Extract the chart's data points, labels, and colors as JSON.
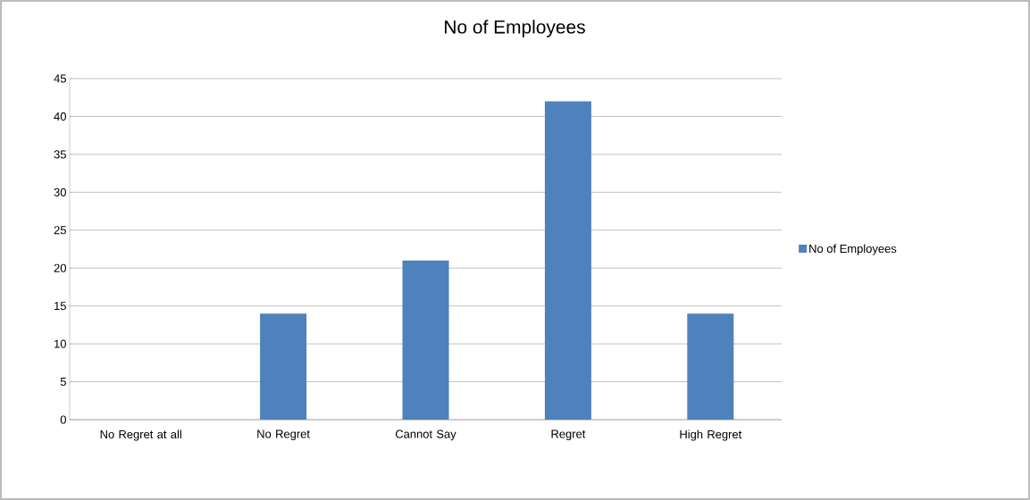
{
  "chart_data": {
    "type": "bar",
    "title": "No of Employees",
    "categories": [
      "No Regret at all",
      "No Regret",
      "Cannot Say",
      "Regret",
      "High Regret"
    ],
    "series": [
      {
        "name": "No of Employees",
        "color": "#4f81bd",
        "values": [
          0,
          14,
          21,
          42,
          14
        ]
      }
    ],
    "ylim": [
      0,
      45
    ],
    "yticks": [
      0,
      5,
      10,
      15,
      20,
      25,
      30,
      35,
      40,
      45
    ],
    "grid": "y",
    "legend": "right"
  }
}
